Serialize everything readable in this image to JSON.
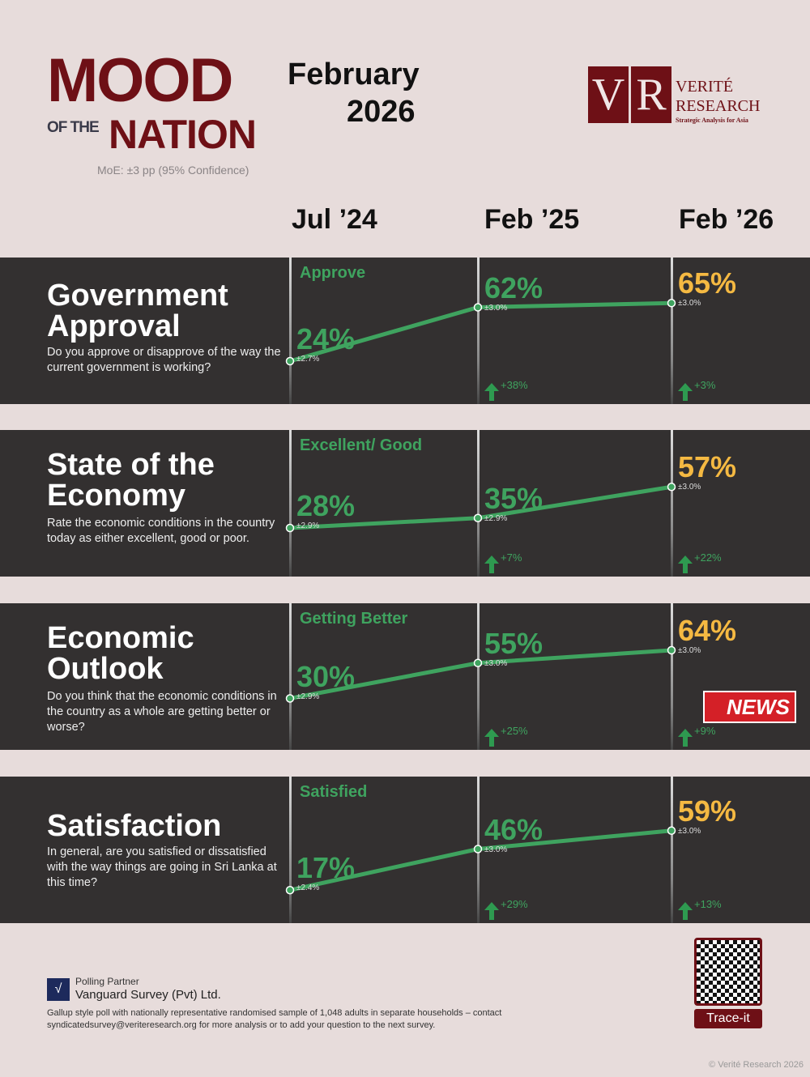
{
  "header": {
    "logo_mood": "MOOD",
    "logo_of_the": "OF THE",
    "logo_nation": "NATION",
    "moe": "MoE: ±3 pp (95% Confidence)",
    "date_month": "February",
    "date_year": "2026",
    "brand": {
      "mark_v": "V",
      "mark_r": "R",
      "name1": "VERITÉ",
      "name2": "RESEARCH",
      "tagline": "Strategic Analysis for Asia"
    }
  },
  "columns": [
    "Jul ’24",
    "Feb ’25",
    "Feb ’26"
  ],
  "chart_data": [
    {
      "type": "line",
      "title": "Government Approval",
      "question": "Do you approve or disapprove of the way the current government is working?",
      "metric": "Approve",
      "categories": [
        "Jul ’24",
        "Feb ’25",
        "Feb ’26"
      ],
      "values": [
        24,
        62,
        65
      ],
      "labels": [
        "24%",
        "62%",
        "65%"
      ],
      "moe": [
        "±2.7%",
        "±3.0%",
        "±3.0%"
      ],
      "changes": [
        "+38%",
        "+3%"
      ]
    },
    {
      "type": "line",
      "title": "State of the Economy",
      "question": "Rate the economic conditions in the country today as either excellent, good or poor.",
      "metric": "Excellent/ Good",
      "categories": [
        "Jul ’24",
        "Feb ’25",
        "Feb ’26"
      ],
      "values": [
        28,
        35,
        57
      ],
      "labels": [
        "28%",
        "35%",
        "57%"
      ],
      "moe": [
        "±2.9%",
        "±2.9%",
        "±3.0%"
      ],
      "changes": [
        "+7%",
        "+22%"
      ]
    },
    {
      "type": "line",
      "title": "Economic Outlook",
      "question": "Do you think that the economic conditions in the country as a whole are getting better or worse?",
      "metric": "Getting Better",
      "categories": [
        "Jul ’24",
        "Feb ’25",
        "Feb ’26"
      ],
      "values": [
        30,
        55,
        64
      ],
      "labels": [
        "30%",
        "55%",
        "64%"
      ],
      "moe": [
        "±2.9%",
        "±3.0%",
        "±3.0%"
      ],
      "changes": [
        "+25%",
        "+9%"
      ]
    },
    {
      "type": "line",
      "title": "Satisfaction",
      "question": "In general, are you satisfied or dissatisfied with the way things are going in Sri Lanka at this time?",
      "metric": "Satisfied",
      "categories": [
        "Jul ’24",
        "Feb ’25",
        "Feb ’26"
      ],
      "values": [
        17,
        46,
        59
      ],
      "labels": [
        "17%",
        "46%",
        "59%"
      ],
      "moe": [
        "±2.4%",
        "±3.0%",
        "±3.0%"
      ],
      "changes": [
        "+29%",
        "+13%"
      ]
    }
  ],
  "colors": {
    "line": "#3fa35f",
    "latest": "#f5b942",
    "panel": "#333030",
    "brand": "#6e1016"
  },
  "watermark": "NEWS",
  "footer": {
    "partner_label": "Polling Partner",
    "partner": "Vanguard Survey (Pvt) Ltd.",
    "note": "Gallup style poll with nationally representative randomised sample of 1,048 adults in separate households – contact syndicatedsurvey@veriteresearch.org for more analysis or to add your question to the next survey.",
    "trace": "Trace-it",
    "copyright": "© Verité Research 2026"
  }
}
